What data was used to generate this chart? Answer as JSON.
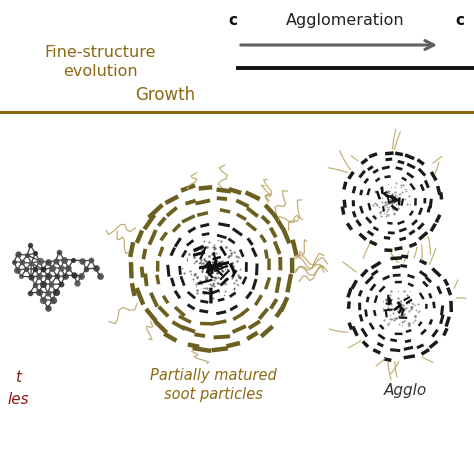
{
  "bg_color": "#ffffff",
  "fine_struct_color": "#8b6914",
  "growth_color": "#8b6914",
  "arrow_gray": "#606060",
  "arrow_black": "#111111",
  "rod_olive": "#6b6020",
  "rod_dark": "#1a1a1a",
  "rod_tan": "#b8a060",
  "core_dot": "#555555",
  "text_fine_structure": "Fine-structure\nevolution",
  "text_growth": "Growth",
  "text_agglomeration": "Agglomeration",
  "text_c": "c",
  "text_partially_matured": "Partially matured\nsoot particles",
  "text_agglo": "Agglo",
  "text_t": "t",
  "text_les": "les",
  "figsize": [
    4.74,
    4.74
  ],
  "dpi": 100
}
